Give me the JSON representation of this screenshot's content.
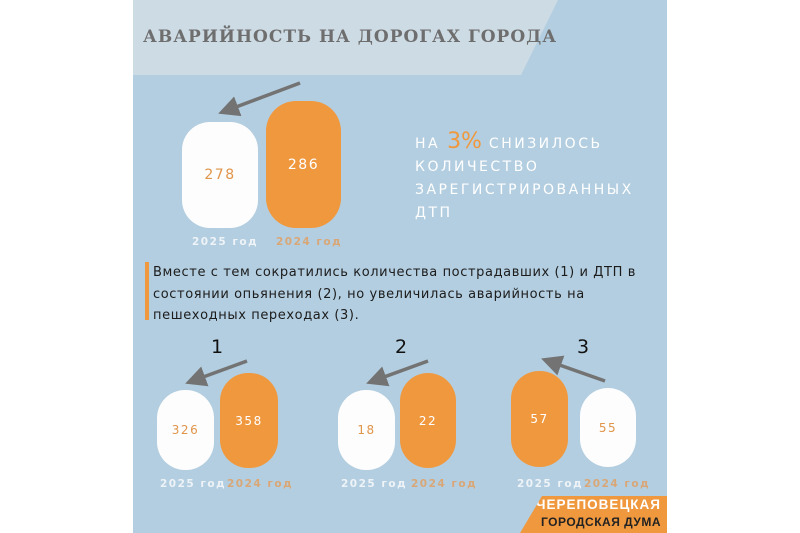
{
  "title": "АВАРИЙНОСТЬ НА ДОРОГАХ ГОРОДА",
  "main": {
    "v2025": "278",
    "v2024": "286",
    "l2025": "2025 год",
    "l2024": "2024 год"
  },
  "stat": {
    "pre": "НА",
    "pct": "3%",
    "line1": "СНИЗИЛОСЬ",
    "line2": "КОЛИЧЕСТВО",
    "line3": "ЗАРЕГИСТРИРОВАННЫХ",
    "line4": "ДТП"
  },
  "paragraph": "Вместе с тем сократились количества пострадавших (1) и ДТП в состоянии опьянения (2), но увеличилась аварийность на пешеходных переходах (3).",
  "groups": [
    {
      "num": "1",
      "v2025": "326",
      "v2024": "358",
      "l2025": "2025 год",
      "l2024": "2024 год"
    },
    {
      "num": "2",
      "v2025": "18",
      "v2024": "22",
      "l2025": "2025 год",
      "l2024": "2024 год"
    },
    {
      "num": "3",
      "v2025": "57",
      "v2024": "55",
      "l2025": "2025 год",
      "l2024": "2024 год"
    }
  ],
  "logo": {
    "line1": "ЧЕРЕПОВЕЦКАЯ",
    "line2": "ГОРОДСКАЯ ДУМА"
  },
  "colors": {
    "accent": "#f0983e",
    "background": "#b3cee0",
    "arrow": "#737373"
  }
}
